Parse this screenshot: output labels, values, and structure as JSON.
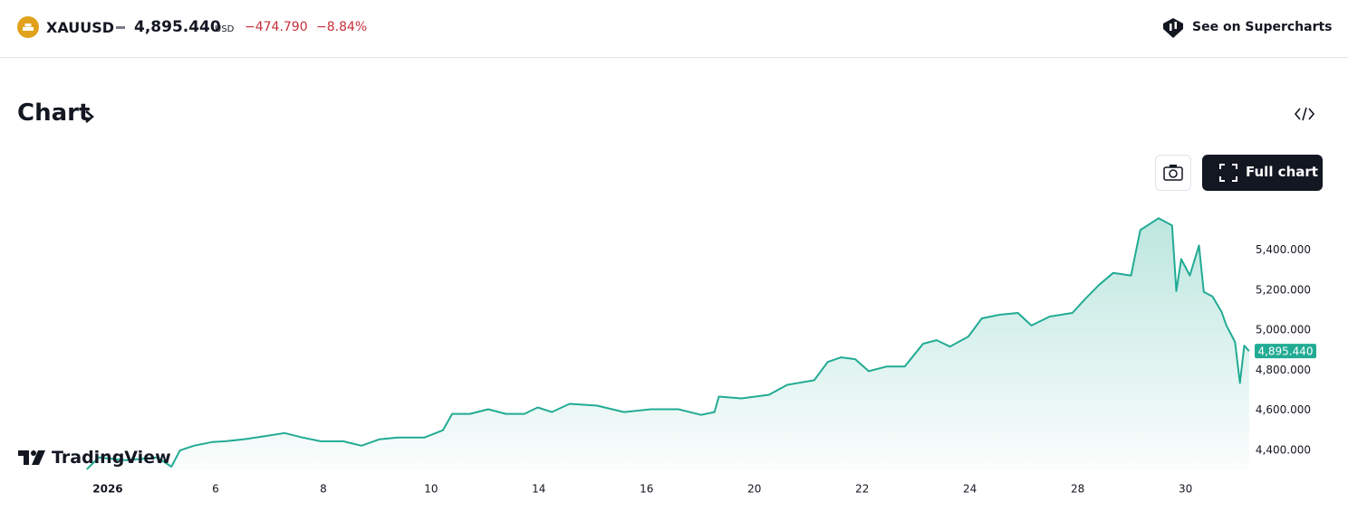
{
  "header": {
    "symbol": "XAUUSD",
    "price": "4,895.440",
    "currency": "USD",
    "change": "−474.790",
    "change_percent": "−8.84%",
    "link": "See on Supercharts"
  },
  "section": {
    "title": "Chart",
    "button": "Full chart"
  },
  "brand": "TradingView",
  "chart_data": {
    "type": "area",
    "color": "#22ab94",
    "grid": false,
    "x": [
      0.61,
      0.83,
      1.34,
      1.92,
      2.18,
      2.34,
      2.6,
      2.93,
      3.18,
      3.52,
      3.86,
      4.28,
      4.61,
      4.95,
      5.37,
      5.71,
      6.04,
      6.38,
      6.88,
      7.22,
      7.39,
      7.72,
      8.06,
      8.39,
      8.73,
      8.98,
      9.24,
      9.57,
      10.08,
      10.58,
      11.08,
      11.59,
      12.01,
      12.26,
      12.34,
      12.76,
      13.27,
      13.61,
      14.11,
      14.36,
      14.61,
      14.87,
      15.12,
      15.45,
      15.79,
      16.13,
      16.38,
      16.63,
      16.97,
      17.22,
      17.55,
      17.89,
      18.14,
      18.48,
      18.9,
      19.15,
      19.4,
      19.66,
      19.99,
      20.16,
      20.5,
      20.75,
      20.83,
      20.92,
      21.08,
      21.25,
      21.34,
      21.5,
      21.67,
      21.76,
      21.92,
      22.01,
      22.09,
      22.18
    ],
    "values": [
      4305,
      4364,
      4350,
      4364,
      4318,
      4400,
      4423,
      4441,
      4445,
      4455,
      4468,
      4486,
      4464,
      4445,
      4445,
      4423,
      4455,
      4464,
      4464,
      4500,
      4582,
      4582,
      4605,
      4582,
      4582,
      4614,
      4591,
      4632,
      4623,
      4591,
      4605,
      4605,
      4577,
      4591,
      4668,
      4659,
      4677,
      4727,
      4750,
      4841,
      4864,
      4855,
      4795,
      4818,
      4818,
      4932,
      4950,
      4918,
      4968,
      5059,
      5077,
      5086,
      5023,
      5068,
      5086,
      5159,
      5227,
      5286,
      5273,
      5500,
      5559,
      5523,
      5195,
      5355,
      5273,
      5423,
      5191,
      5168,
      5091,
      5023,
      4941,
      4736,
      4923,
      4895.44
    ],
    "xlim": [
      -1,
      22.2
    ],
    "xticks": [
      {
        "value": 1,
        "label": "2026"
      },
      {
        "value": 3,
        "label": "6"
      },
      {
        "value": 5,
        "label": "8"
      },
      {
        "value": 7,
        "label": "10"
      },
      {
        "value": 9,
        "label": "14"
      },
      {
        "value": 11,
        "label": "16"
      },
      {
        "value": 13,
        "label": "20"
      },
      {
        "value": 15,
        "label": "22"
      },
      {
        "value": 17,
        "label": "24"
      },
      {
        "value": 19,
        "label": "28"
      },
      {
        "value": 21,
        "label": "30"
      }
    ],
    "ylim": [
      4300,
      5610
    ],
    "yticks": [
      {
        "value": 4400,
        "label": "4,400.000"
      },
      {
        "value": 4600,
        "label": "4,600.000"
      },
      {
        "value": 4800,
        "label": "4,800.000"
      },
      {
        "value": 5000,
        "label": "5,000.000"
      },
      {
        "value": 5200,
        "label": "5,200.000"
      },
      {
        "value": 5400,
        "label": "5,400.000"
      }
    ]
  }
}
